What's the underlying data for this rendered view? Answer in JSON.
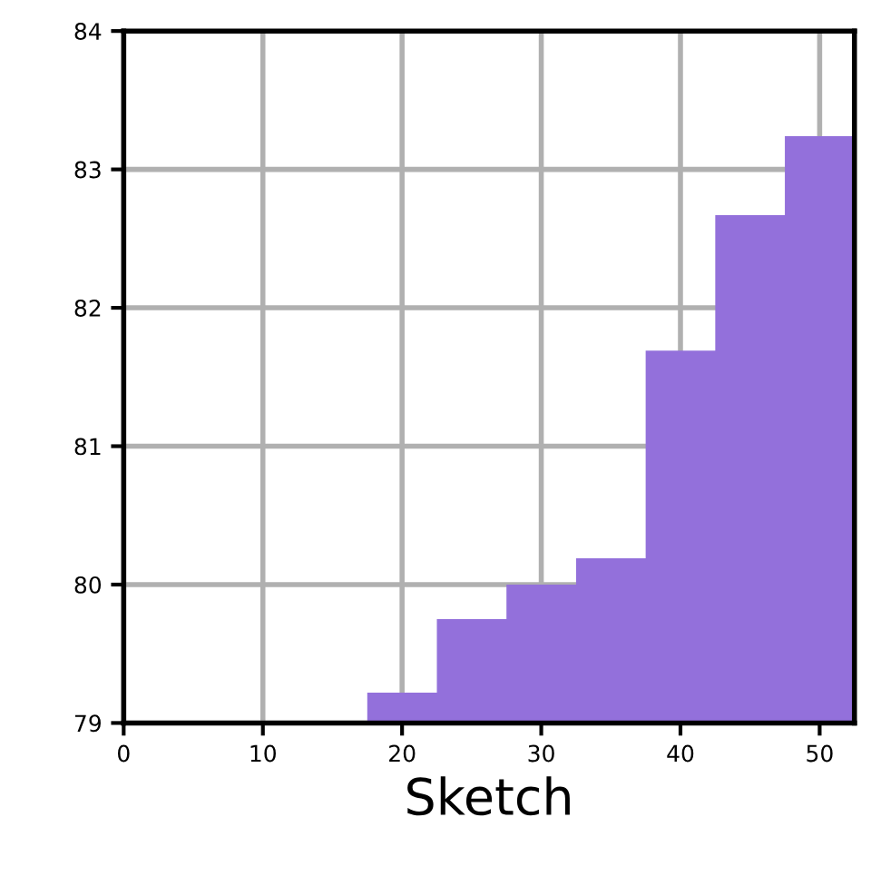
{
  "chart_data": {
    "type": "histogram",
    "xlabel": "Sketch",
    "bins": [
      17.5,
      22.5,
      27.5,
      32.5,
      37.5,
      42.5,
      47.5,
      52.5
    ],
    "values": [
      79.22,
      79.75,
      80.0,
      80.19,
      81.69,
      82.67,
      83.24
    ],
    "color": "#9370db",
    "xlim": [
      0,
      52.5
    ],
    "xticks": [
      0,
      10,
      20,
      30,
      40,
      50
    ],
    "ylim": [
      79,
      84
    ],
    "yticks": [
      79,
      80,
      81,
      82,
      83,
      84
    ],
    "grid": true
  }
}
